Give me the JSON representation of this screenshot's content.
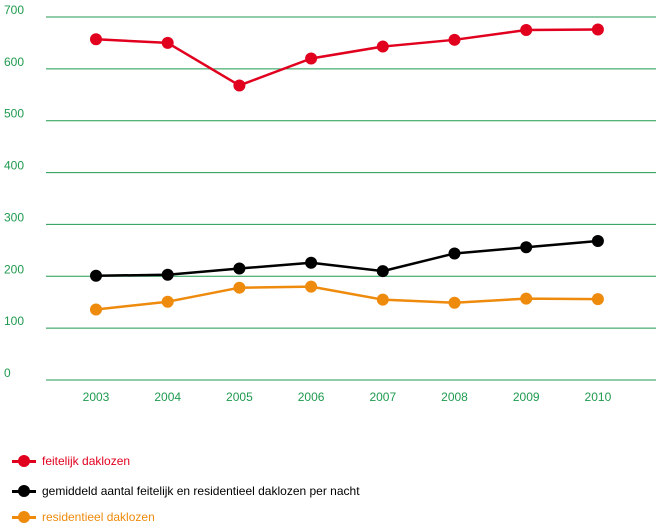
{
  "chart_data": {
    "type": "line",
    "categories": [
      "2003",
      "2004",
      "2005",
      "2006",
      "2007",
      "2008",
      "2009",
      "2010"
    ],
    "series": [
      {
        "name": "feitelijk daklozen",
        "color": "#e1001e",
        "values": [
          657,
          650,
          568,
          620,
          643,
          656,
          675,
          676
        ]
      },
      {
        "name": "gemiddeld aantal feitelijk en residentieel daklozen per nacht",
        "color": "#000000",
        "values": [
          201,
          203,
          215,
          226,
          210,
          244,
          256,
          268
        ]
      },
      {
        "name": "residentieel daklozen",
        "color": "#ee8a0c",
        "values": [
          136,
          151,
          178,
          180,
          155,
          149,
          157,
          156
        ]
      }
    ],
    "yticks": [
      0,
      100,
      200,
      300,
      400,
      500,
      600,
      700
    ],
    "ylim": [
      0,
      700
    ],
    "grid": true,
    "grid_color": "#1f9a4f",
    "tick_label_color": "#1f9a4f",
    "legend_position": "bottom-left"
  }
}
